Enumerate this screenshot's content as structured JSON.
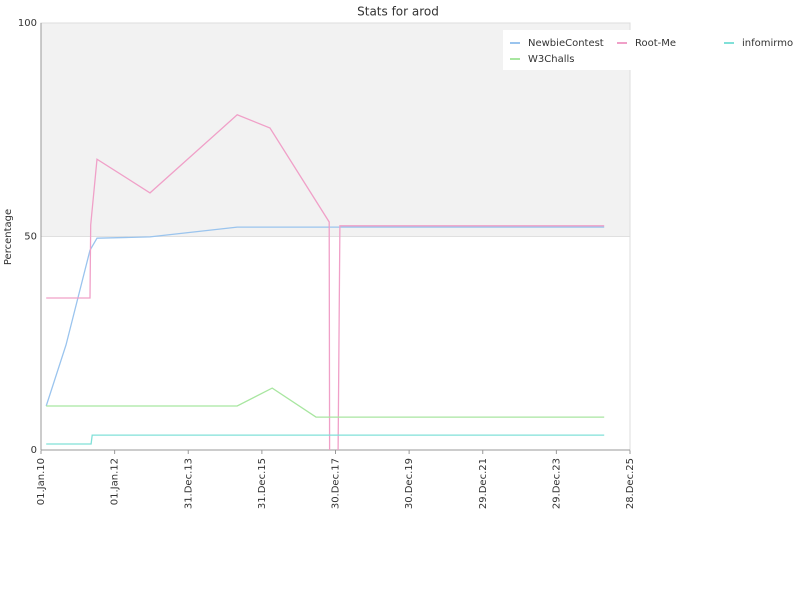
{
  "chart_data": {
    "type": "line",
    "title": "Stats for arod",
    "ylabel": "Percentage",
    "xlim": [
      2010,
      2026
    ],
    "ylim": [
      0,
      100
    ],
    "yticks": [
      0,
      50,
      100
    ],
    "grid": true,
    "legend": "upper right",
    "xticks": [
      {
        "value": 2010,
        "label": "01.Jan.10"
      },
      {
        "value": 2012,
        "label": "01.Jan.12"
      },
      {
        "value": 2014,
        "label": "31.Dec.13"
      },
      {
        "value": 2016,
        "label": "31.Dec.15"
      },
      {
        "value": 2018,
        "label": "30.Dec.17"
      },
      {
        "value": 2020,
        "label": "30.Dec.19"
      },
      {
        "value": 2022,
        "label": "29.Dec.21"
      },
      {
        "value": 2024,
        "label": "29.Dec.23"
      },
      {
        "value": 2026,
        "label": "28.Dec.25"
      }
    ],
    "series": [
      {
        "name": "NewbieContest",
        "color": "#9ac4ee",
        "x": [
          2010.14,
          2010.68,
          2011.33,
          2011.52,
          2012.96,
          2015.33,
          2025.3
        ],
        "values": [
          10.3,
          24.6,
          46.8,
          49.6,
          49.9,
          52.2,
          52.2
        ]
      },
      {
        "name": "Root-Me",
        "color": "#f0a0c8",
        "x": [
          2010.14,
          2011.33,
          2011.35,
          2011.52,
          2012.96,
          2015.33,
          2016.22,
          2017.83,
          2017.84,
          null,
          2018.07,
          2018.12,
          2025.3
        ],
        "values": [
          35.6,
          35.6,
          52.7,
          68.1,
          60.2,
          78.5,
          75.4,
          53.4,
          0,
          null,
          0,
          52.5,
          52.5
        ]
      },
      {
        "name": "infomirmo",
        "color": "#80e0d8",
        "x": [
          2010.14,
          2011.36,
          2011.39,
          2025.3
        ],
        "values": [
          1.4,
          1.4,
          3.5,
          3.5
        ]
      },
      {
        "name": "W3Challs",
        "color": "#a8e6a0",
        "x": [
          2010.14,
          2015.33,
          2016.28,
          2017.47,
          2025.3
        ],
        "values": [
          10.3,
          10.3,
          14.5,
          7.7,
          7.7
        ]
      }
    ]
  }
}
